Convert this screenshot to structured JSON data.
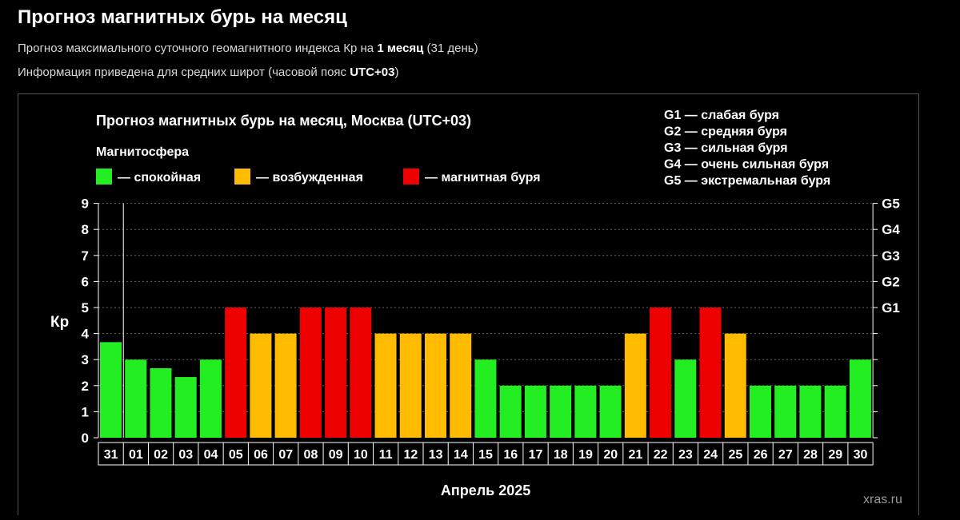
{
  "header": {
    "title": "Прогноз магнитных бурь на месяц",
    "subtitle1_pre": "Прогноз максимального суточного геомагнитного индекса Кр на ",
    "subtitle1_bold": "1 месяц",
    "subtitle1_post": " (31 день)",
    "subtitle2_pre": "Информация приведена для средних широт (часовой пояс ",
    "subtitle2_bold": "UTC+03",
    "subtitle2_post": ")"
  },
  "colors": {
    "calm": "#22ee22",
    "excited": "#ffbb00",
    "storm": "#ee0000",
    "background": "#000000",
    "grid": "#666666"
  },
  "chart_data": {
    "type": "bar",
    "title": "Прогноз магнитных бурь на месяц, Москва (UTC+03)",
    "xlabel": "Апрель 2025",
    "ylabel": "Кр",
    "ylim": [
      0,
      9
    ],
    "yticks": [
      "0",
      "1",
      "2",
      "3",
      "4",
      "5",
      "6",
      "7",
      "8",
      "9"
    ],
    "right_ticks": [
      {
        "value": 5,
        "label": "G1"
      },
      {
        "value": 6,
        "label": "G2"
      },
      {
        "value": 7,
        "label": "G3"
      },
      {
        "value": 8,
        "label": "G4"
      },
      {
        "value": 9,
        "label": "G5"
      }
    ],
    "legend_title": "Магнитосфера",
    "legend": [
      {
        "label": "— спокойная",
        "status": "calm"
      },
      {
        "label": "— возбужденная",
        "status": "excited"
      },
      {
        "label": "— магнитная буря",
        "status": "storm"
      }
    ],
    "storm_scale": [
      "G1 — слабая буря",
      "G2 — средняя буря",
      "G3 — сильная буря",
      "G4 — очень сильная буря",
      "G5 — экстремальная буря"
    ],
    "categories": [
      "31",
      "01",
      "02",
      "03",
      "04",
      "05",
      "06",
      "07",
      "08",
      "09",
      "10",
      "11",
      "12",
      "13",
      "14",
      "15",
      "16",
      "17",
      "18",
      "19",
      "20",
      "21",
      "22",
      "23",
      "24",
      "25",
      "26",
      "27",
      "28",
      "29",
      "30"
    ],
    "values": [
      3.67,
      3,
      2.67,
      2.33,
      3,
      5,
      4,
      4,
      5,
      5,
      5,
      4,
      4,
      4,
      4,
      3,
      2,
      2,
      2,
      2,
      2,
      4,
      5,
      3,
      5,
      4,
      2,
      2,
      2,
      2,
      3
    ],
    "status": [
      "calm",
      "calm",
      "calm",
      "calm",
      "calm",
      "storm",
      "excited",
      "excited",
      "storm",
      "storm",
      "storm",
      "excited",
      "excited",
      "excited",
      "excited",
      "calm",
      "calm",
      "calm",
      "calm",
      "calm",
      "calm",
      "excited",
      "storm",
      "calm",
      "storm",
      "excited",
      "calm",
      "calm",
      "calm",
      "calm",
      "calm"
    ],
    "grid": true,
    "legend_position": "top"
  },
  "watermark": "xras.ru"
}
